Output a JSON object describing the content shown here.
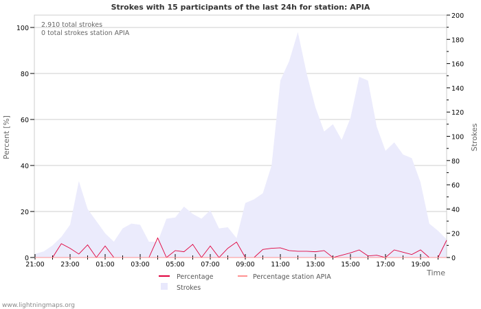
{
  "chart_data": {
    "type": "line",
    "title": "Strokes with 15 participants of the last 24h for station: APIA",
    "xlabel": "Time",
    "ylabel_left": "Percent   [%]",
    "ylabel_right": "Strokes",
    "ylim_left": [
      0,
      100
    ],
    "ylim_right": [
      0,
      200
    ],
    "yticks_left": [
      "0",
      "20",
      "40",
      "60",
      "80",
      "100"
    ],
    "yticks_right": [
      "0",
      "20",
      "40",
      "60",
      "80",
      "100",
      "120",
      "140",
      "160",
      "180",
      "200"
    ],
    "xtick_labels": [
      "21:00",
      "23:00",
      "01:00",
      "03:00",
      "05:00",
      "07:00",
      "09:00",
      "11:00",
      "13:00",
      "15:00",
      "17:00",
      "19:00"
    ],
    "grid": true,
    "annotations": [
      "2.910 total strokes",
      "0 total strokes station APIA"
    ],
    "legend": {
      "placement": "bottom",
      "entries": [
        {
          "label": "Percentage",
          "color": "#e0003c"
        },
        {
          "label": "Percentage station APIA",
          "color": "#ff9090"
        },
        {
          "label": "Strokes",
          "color": "#e8e8fc"
        }
      ]
    },
    "x_start": "21:00",
    "x_interval_minutes": 30,
    "series": [
      {
        "name": "Strokes",
        "axis": "right",
        "type": "area",
        "color": "#ebebfc",
        "values": [
          3,
          5,
          10,
          17,
          27,
          63,
          40,
          30,
          20,
          13,
          24,
          28,
          27,
          13,
          13,
          32,
          33,
          42,
          36,
          32,
          39,
          24,
          25,
          16,
          45,
          48,
          53,
          76,
          146,
          162,
          186,
          152,
          124,
          104,
          110,
          97,
          115,
          149,
          146,
          108,
          88,
          95,
          85,
          82,
          62,
          28,
          22,
          15
        ]
      },
      {
        "name": "Percentage",
        "axis": "left",
        "type": "line",
        "color": "#e0003c",
        "values": [
          0,
          0,
          0,
          6,
          4,
          1.5,
          5.5,
          0,
          5,
          0,
          0,
          0,
          0,
          0,
          8.5,
          0,
          3,
          2.5,
          5.7,
          0,
          5,
          0,
          4,
          6.7,
          0,
          0,
          3.5,
          4,
          4.2,
          3,
          2.7,
          2.7,
          2.5,
          3,
          0,
          1,
          2,
          3.3,
          0.7,
          1,
          0,
          3.3,
          2.3,
          1.3,
          3.3,
          0,
          0,
          7.5
        ]
      },
      {
        "name": "Percentage station APIA",
        "axis": "left",
        "type": "line",
        "color": "#ff9090",
        "values": [
          0,
          0,
          0,
          0,
          0,
          0,
          0,
          0,
          0,
          0,
          0,
          0,
          0,
          0,
          0,
          0,
          0,
          0,
          0,
          0,
          0,
          0,
          0,
          0,
          0,
          0,
          0,
          0,
          0,
          0,
          0,
          0,
          0,
          0,
          0,
          0,
          0,
          0,
          0,
          0,
          0,
          0,
          0,
          0,
          0,
          0,
          0,
          0
        ]
      }
    ]
  },
  "footer": "www.lightningmaps.org"
}
